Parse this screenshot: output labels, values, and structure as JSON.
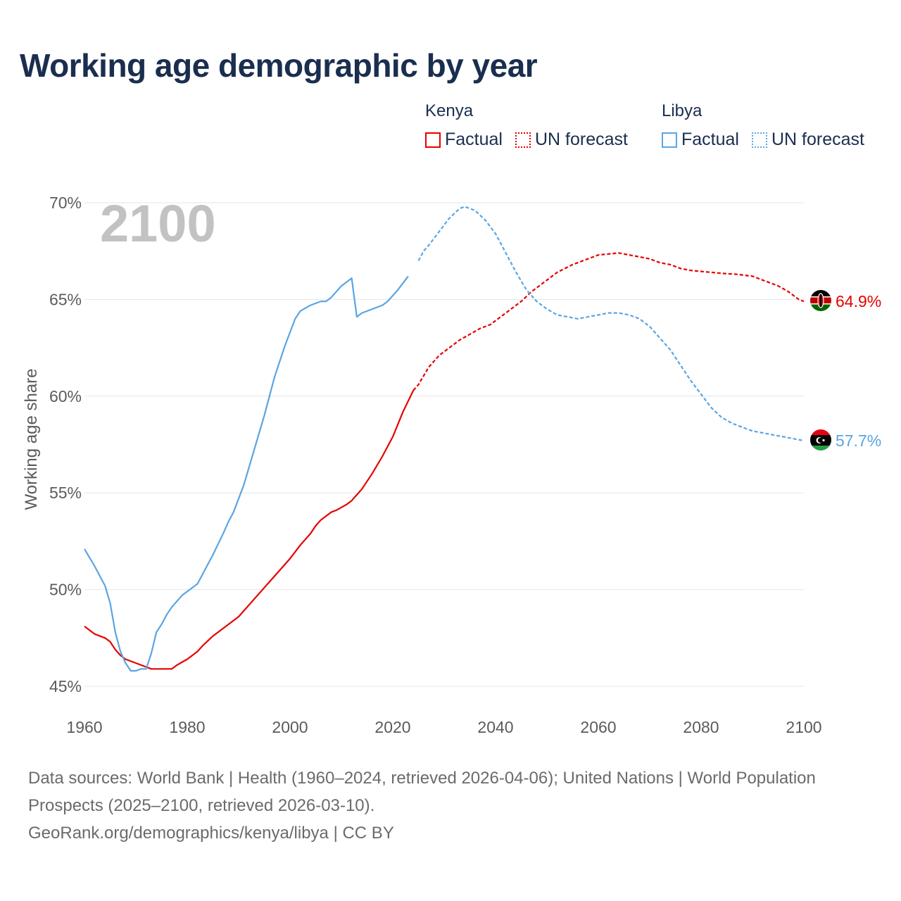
{
  "title": "Working age demographic by year",
  "legend": {
    "groups": [
      {
        "country": "Kenya",
        "factual_label": "Factual",
        "forecast_label": "UN forecast",
        "color": "#e60000"
      },
      {
        "country": "Libya",
        "factual_label": "Factual",
        "forecast_label": "UN forecast",
        "color": "#5aa5e3"
      }
    ]
  },
  "year_overlay": "2100",
  "footer": {
    "sources": "Data sources: World Bank | Health (1960–2024, retrieved 2026-04-06); United Nations | World Population Prospects (2025–2100, retrieved 2026-03-10).",
    "credit": "GeoRank.org/demographics/kenya/libya | CC BY"
  },
  "chart_data": {
    "type": "line",
    "title": "Working age demographic by year",
    "xlabel": "",
    "ylabel": "Working age share",
    "xlim": [
      1960,
      2100
    ],
    "ylim": [
      45,
      70
    ],
    "x_ticks": [
      1960,
      1980,
      2000,
      2020,
      2040,
      2060,
      2080,
      2100
    ],
    "x_tick_labels": [
      "1960",
      "1980",
      "2000",
      "2020",
      "2040",
      "2060",
      "2080",
      "2100"
    ],
    "y_ticks": [
      45,
      50,
      55,
      60,
      65,
      70
    ],
    "y_tick_labels": [
      "45%",
      "50%",
      "55%",
      "60%",
      "65%",
      "70%"
    ],
    "forecast_start": 2024,
    "series": [
      {
        "name": "Kenya",
        "color": "#e60000",
        "end_label": "64.9%",
        "flag": "kenya-flag-icon",
        "points": [
          [
            1960,
            48.1
          ],
          [
            1962,
            47.7
          ],
          [
            1964,
            47.5
          ],
          [
            1965,
            47.3
          ],
          [
            1966,
            46.9
          ],
          [
            1967,
            46.6
          ],
          [
            1968,
            46.4
          ],
          [
            1970,
            46.2
          ],
          [
            1972,
            46.0
          ],
          [
            1973,
            45.9
          ],
          [
            1975,
            45.9
          ],
          [
            1977,
            45.9
          ],
          [
            1978,
            46.1
          ],
          [
            1980,
            46.4
          ],
          [
            1982,
            46.8
          ],
          [
            1983,
            47.1
          ],
          [
            1985,
            47.6
          ],
          [
            1987,
            48.0
          ],
          [
            1990,
            48.6
          ],
          [
            1993,
            49.5
          ],
          [
            1996,
            50.4
          ],
          [
            1999,
            51.3
          ],
          [
            2000,
            51.6
          ],
          [
            2002,
            52.3
          ],
          [
            2003,
            52.6
          ],
          [
            2004,
            52.9
          ],
          [
            2005,
            53.3
          ],
          [
            2006,
            53.6
          ],
          [
            2007,
            53.8
          ],
          [
            2008,
            54.0
          ],
          [
            2009,
            54.1
          ],
          [
            2011,
            54.4
          ],
          [
            2012,
            54.6
          ],
          [
            2014,
            55.2
          ],
          [
            2016,
            56.0
          ],
          [
            2018,
            56.9
          ],
          [
            2020,
            57.9
          ],
          [
            2022,
            59.2
          ],
          [
            2024,
            60.3
          ],
          [
            2025,
            60.6
          ],
          [
            2027,
            61.5
          ],
          [
            2029,
            62.1
          ],
          [
            2031,
            62.5
          ],
          [
            2033,
            62.9
          ],
          [
            2035,
            63.2
          ],
          [
            2037,
            63.5
          ],
          [
            2039,
            63.7
          ],
          [
            2041,
            64.1
          ],
          [
            2043,
            64.5
          ],
          [
            2045,
            64.9
          ],
          [
            2047,
            65.4
          ],
          [
            2049,
            65.8
          ],
          [
            2052,
            66.4
          ],
          [
            2055,
            66.8
          ],
          [
            2058,
            67.1
          ],
          [
            2060,
            67.3
          ],
          [
            2062,
            67.35
          ],
          [
            2064,
            67.4
          ],
          [
            2066,
            67.3
          ],
          [
            2068,
            67.2
          ],
          [
            2070,
            67.1
          ],
          [
            2072,
            66.9
          ],
          [
            2074,
            66.8
          ],
          [
            2076,
            66.6
          ],
          [
            2078,
            66.5
          ],
          [
            2080,
            66.45
          ],
          [
            2082,
            66.4
          ],
          [
            2084,
            66.35
          ],
          [
            2087,
            66.3
          ],
          [
            2090,
            66.2
          ],
          [
            2093,
            65.9
          ],
          [
            2095,
            65.7
          ],
          [
            2097,
            65.4
          ],
          [
            2099,
            65.0
          ],
          [
            2100,
            64.9
          ]
        ]
      },
      {
        "name": "Libya",
        "color": "#5aa5e3",
        "end_label": "57.7%",
        "flag": "libya-flag-icon",
        "points": [
          [
            1960,
            52.1
          ],
          [
            1962,
            51.2
          ],
          [
            1964,
            50.2
          ],
          [
            1965,
            49.3
          ],
          [
            1966,
            47.8
          ],
          [
            1967,
            46.8
          ],
          [
            1968,
            46.2
          ],
          [
            1969,
            45.8
          ],
          [
            1970,
            45.8
          ],
          [
            1971,
            45.9
          ],
          [
            1972,
            45.9
          ],
          [
            1973,
            46.7
          ],
          [
            1974,
            47.8
          ],
          [
            1975,
            48.2
          ],
          [
            1976,
            48.7
          ],
          [
            1977,
            49.1
          ],
          [
            1978,
            49.4
          ],
          [
            1979,
            49.7
          ],
          [
            1981,
            50.1
          ],
          [
            1982,
            50.3
          ],
          [
            1983,
            50.8
          ],
          [
            1985,
            51.8
          ],
          [
            1987,
            52.9
          ],
          [
            1988,
            53.5
          ],
          [
            1989,
            54.0
          ],
          [
            1991,
            55.4
          ],
          [
            1993,
            57.2
          ],
          [
            1995,
            59.0
          ],
          [
            1997,
            61.0
          ],
          [
            1999,
            62.6
          ],
          [
            2000,
            63.3
          ],
          [
            2001,
            64.0
          ],
          [
            2002,
            64.4
          ],
          [
            2004,
            64.7
          ],
          [
            2006,
            64.9
          ],
          [
            2007,
            64.9
          ],
          [
            2008,
            65.1
          ],
          [
            2010,
            65.7
          ],
          [
            2012,
            66.1
          ],
          [
            2013,
            64.1
          ],
          [
            2014,
            64.3
          ],
          [
            2016,
            64.5
          ],
          [
            2018,
            64.7
          ],
          [
            2019,
            64.9
          ],
          [
            2021,
            65.5
          ],
          [
            2023,
            66.2
          ],
          [
            2025,
            67.0
          ],
          [
            2026,
            67.5
          ],
          [
            2027,
            67.8
          ],
          [
            2029,
            68.5
          ],
          [
            2031,
            69.2
          ],
          [
            2033,
            69.7
          ],
          [
            2034,
            69.8
          ],
          [
            2036,
            69.6
          ],
          [
            2038,
            69.1
          ],
          [
            2040,
            68.4
          ],
          [
            2042,
            67.4
          ],
          [
            2044,
            66.4
          ],
          [
            2046,
            65.5
          ],
          [
            2048,
            64.9
          ],
          [
            2050,
            64.5
          ],
          [
            2052,
            64.2
          ],
          [
            2054,
            64.1
          ],
          [
            2056,
            64.0
          ],
          [
            2058,
            64.1
          ],
          [
            2060,
            64.2
          ],
          [
            2062,
            64.3
          ],
          [
            2064,
            64.3
          ],
          [
            2066,
            64.2
          ],
          [
            2068,
            64.0
          ],
          [
            2070,
            63.6
          ],
          [
            2072,
            63.0
          ],
          [
            2074,
            62.4
          ],
          [
            2076,
            61.6
          ],
          [
            2078,
            60.8
          ],
          [
            2080,
            60.1
          ],
          [
            2082,
            59.4
          ],
          [
            2084,
            58.9
          ],
          [
            2086,
            58.6
          ],
          [
            2088,
            58.4
          ],
          [
            2090,
            58.2
          ],
          [
            2092,
            58.1
          ],
          [
            2094,
            58.0
          ],
          [
            2096,
            57.9
          ],
          [
            2098,
            57.8
          ],
          [
            2100,
            57.7
          ]
        ]
      }
    ]
  }
}
